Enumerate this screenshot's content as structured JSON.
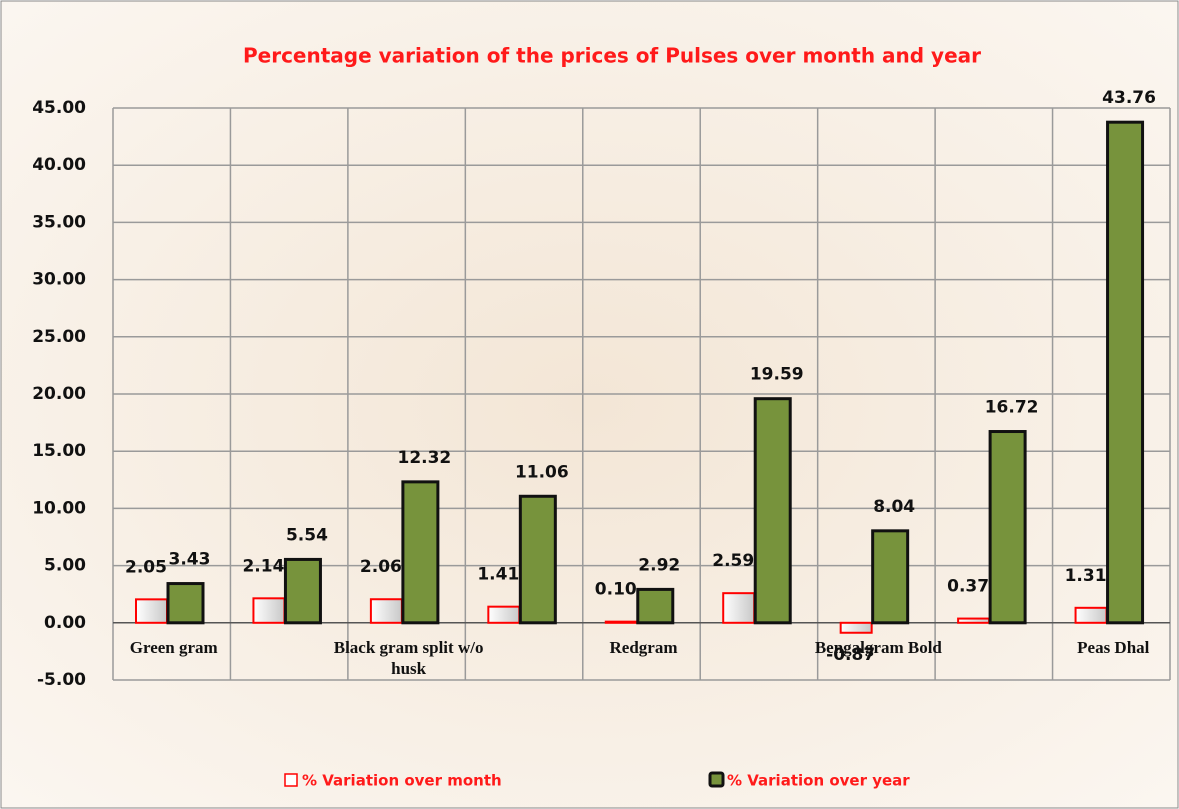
{
  "chart_data": {
    "type": "bar",
    "title": "Percentage variation of the prices of Pulses over month and year",
    "categories": [
      "Green gram",
      null,
      "Black gram  split w/o husk",
      null,
      "Redgram",
      null,
      "Bengalgram Bold",
      null,
      "Peas Dhal"
    ],
    "series": [
      {
        "name": "% Variation over month",
        "color": "#ff0000",
        "values": [
          2.05,
          2.14,
          2.06,
          1.41,
          0.1,
          2.59,
          -0.87,
          0.37,
          1.31
        ],
        "value_labels": [
          "2.05",
          "2.14",
          "2.06",
          "1.41",
          "0.10",
          "2.59",
          "-0.87",
          "0.37",
          "1.31"
        ]
      },
      {
        "name": "% Variation over year",
        "color": "#77933c",
        "values": [
          3.43,
          5.54,
          12.32,
          11.06,
          2.92,
          19.59,
          8.04,
          16.72,
          43.76
        ],
        "value_labels": [
          "3.43",
          "5.54",
          "12.32",
          "11.06",
          "2.92",
          "19.59",
          "8.04",
          "16.72",
          "43.76"
        ]
      }
    ],
    "ylim": [
      -5,
      45
    ],
    "yticks": [
      {
        "value": -5,
        "label": "-5.00"
      },
      {
        "value": 0,
        "label": "0.00"
      },
      {
        "value": 5,
        "label": "5.00"
      },
      {
        "value": 10,
        "label": "10.00"
      },
      {
        "value": 15,
        "label": "15.00"
      },
      {
        "value": 20,
        "label": "20.00"
      },
      {
        "value": 25,
        "label": "25.00"
      },
      {
        "value": 30,
        "label": "30.00"
      },
      {
        "value": 35,
        "label": "35.00"
      },
      {
        "value": 40,
        "label": "40.00"
      },
      {
        "value": 45,
        "label": "45.00"
      }
    ],
    "grid": true
  }
}
